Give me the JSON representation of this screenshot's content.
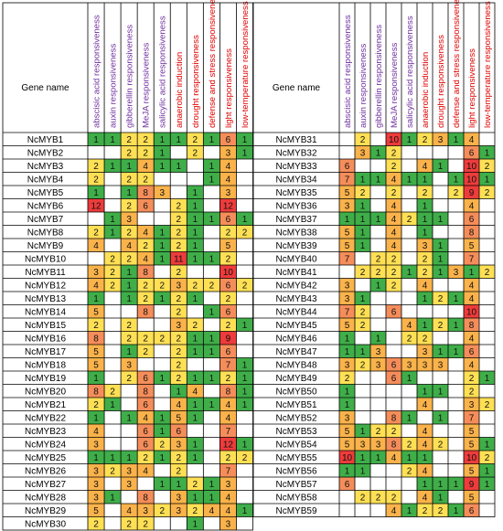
{
  "chart_data": {
    "type": "heatmap",
    "header_gene": "Gene name",
    "columns": [
      {
        "label": "abscisic acid responsiveness",
        "color": "#7030A0"
      },
      {
        "label": "auxin responsiveness",
        "color": "#7030A0"
      },
      {
        "label": "gibberellin responsiveness",
        "color": "#7030A0"
      },
      {
        "label": "MeJA responsiveness",
        "color": "#7030A0"
      },
      {
        "label": "salicylic acid responsiveness",
        "color": "#7030A0"
      },
      {
        "label": "anaerobic induction",
        "color": "#E00000"
      },
      {
        "label": "drought responsiveness",
        "color": "#E00000"
      },
      {
        "label": "defense and stress responsiveness",
        "color": "#E00000"
      },
      {
        "label": "light responsiveness",
        "color": "#E00000"
      },
      {
        "label": "low-temperature responsiveness",
        "color": "#E00000"
      }
    ],
    "left_table": [
      {
        "gene": "NcMYB1",
        "values": [
          1,
          1,
          2,
          2,
          1,
          1,
          2,
          1,
          6,
          1
        ]
      },
      {
        "gene": "NcMYB2",
        "values": [
          null,
          null,
          2,
          2,
          1,
          null,
          2,
          null,
          3,
          1
        ]
      },
      {
        "gene": "NcMYB3",
        "values": [
          2,
          1,
          1,
          4,
          1,
          1,
          null,
          1,
          4,
          null
        ]
      },
      {
        "gene": "NcMYB4",
        "values": [
          2,
          null,
          2,
          2,
          null,
          null,
          null,
          1,
          4,
          null
        ]
      },
      {
        "gene": "NcMYB5",
        "values": [
          1,
          null,
          1,
          8,
          3,
          null,
          1,
          null,
          3,
          null
        ]
      },
      {
        "gene": "NcMYB6",
        "values": [
          12,
          null,
          2,
          6,
          null,
          2,
          1,
          null,
          12,
          null
        ]
      },
      {
        "gene": "NcMYB7",
        "values": [
          null,
          1,
          3,
          null,
          null,
          2,
          1,
          1,
          6,
          1
        ]
      },
      {
        "gene": "NcMYB8",
        "values": [
          2,
          1,
          2,
          4,
          1,
          2,
          1,
          null,
          2,
          2
        ]
      },
      {
        "gene": "NcMYB9",
        "values": [
          4,
          null,
          4,
          2,
          1,
          2,
          1,
          null,
          5,
          null
        ]
      },
      {
        "gene": "NcMYB10",
        "values": [
          null,
          2,
          2,
          4,
          1,
          11,
          1,
          1,
          2,
          null
        ]
      },
      {
        "gene": "NcMYB11",
        "values": [
          3,
          2,
          1,
          8,
          null,
          2,
          null,
          null,
          10,
          null
        ]
      },
      {
        "gene": "NcMYB12",
        "values": [
          4,
          2,
          1,
          2,
          2,
          3,
          2,
          2,
          6,
          2
        ]
      },
      {
        "gene": "NcMYB13",
        "values": [
          1,
          null,
          1,
          2,
          1,
          2,
          1,
          null,
          2,
          null
        ]
      },
      {
        "gene": "NcMYB14",
        "values": [
          5,
          null,
          null,
          8,
          null,
          2,
          null,
          1,
          6,
          null
        ]
      },
      {
        "gene": "NcMYB15",
        "values": [
          2,
          null,
          2,
          null,
          null,
          3,
          2,
          null,
          2,
          1
        ]
      },
      {
        "gene": "NcMYB16",
        "values": [
          8,
          null,
          2,
          2,
          2,
          2,
          1,
          1,
          9,
          null
        ]
      },
      {
        "gene": "NcMYB17",
        "values": [
          5,
          null,
          1,
          2,
          null,
          2,
          1,
          1,
          6,
          null
        ]
      },
      {
        "gene": "NcMYB18",
        "values": [
          5,
          null,
          3,
          null,
          null,
          2,
          null,
          null,
          7,
          1
        ]
      },
      {
        "gene": "NcMYB19",
        "values": [
          1,
          null,
          2,
          6,
          1,
          2,
          1,
          1,
          2,
          1
        ]
      },
      {
        "gene": "NcMYB20",
        "values": [
          8,
          2,
          null,
          8,
          null,
          1,
          4,
          null,
          8,
          1
        ]
      },
      {
        "gene": "NcMYB21",
        "values": [
          2,
          1,
          null,
          6,
          null,
          4,
          1,
          1,
          4,
          1
        ]
      },
      {
        "gene": "NcMYB22",
        "values": [
          1,
          null,
          1,
          4,
          1,
          5,
          1,
          null,
          4,
          null
        ]
      },
      {
        "gene": "NcMYB23",
        "values": [
          4,
          null,
          null,
          6,
          1,
          6,
          null,
          null,
          7,
          null
        ]
      },
      {
        "gene": "NcMYB24",
        "values": [
          3,
          null,
          null,
          6,
          2,
          3,
          1,
          null,
          12,
          1
        ]
      },
      {
        "gene": "NcMYB25",
        "values": [
          1,
          1,
          1,
          2,
          1,
          2,
          1,
          null,
          2,
          2
        ]
      },
      {
        "gene": "NcMYB26",
        "values": [
          3,
          2,
          3,
          4,
          null,
          2,
          null,
          null,
          7,
          null
        ]
      },
      {
        "gene": "NcMYB27",
        "values": [
          3,
          null,
          3,
          null,
          1,
          1,
          2,
          1,
          3,
          null
        ]
      },
      {
        "gene": "NcMYB28",
        "values": [
          3,
          1,
          null,
          8,
          null,
          3,
          1,
          1,
          4,
          null
        ]
      },
      {
        "gene": "NcMYB29",
        "values": [
          5,
          null,
          4,
          3,
          2,
          3,
          2,
          4,
          4,
          1
        ]
      },
      {
        "gene": "NcMYB30",
        "values": [
          2,
          null,
          2,
          2,
          null,
          null,
          1,
          null,
          3,
          null
        ]
      }
    ],
    "right_table": [
      {
        "gene": "NcMYB31",
        "values": [
          null,
          2,
          null,
          10,
          1,
          2,
          3,
          1,
          4,
          null
        ]
      },
      {
        "gene": "NcMYB32",
        "values": [
          null,
          3,
          1,
          2,
          null,
          null,
          null,
          null,
          6,
          1
        ]
      },
      {
        "gene": "NcMYB33",
        "values": [
          6,
          null,
          null,
          2,
          null,
          4,
          1,
          null,
          10,
          2
        ]
      },
      {
        "gene": "NcMYB34",
        "values": [
          7,
          1,
          1,
          4,
          1,
          1,
          null,
          1,
          10,
          1
        ]
      },
      {
        "gene": "NcMYB35",
        "values": [
          5,
          2,
          null,
          2,
          null,
          2,
          null,
          2,
          9,
          2
        ]
      },
      {
        "gene": "NcMYB36",
        "values": [
          3,
          1,
          null,
          4,
          null,
          1,
          null,
          null,
          4,
          null
        ]
      },
      {
        "gene": "NcMYB37",
        "values": [
          1,
          1,
          1,
          4,
          2,
          1,
          1,
          null,
          6,
          null
        ]
      },
      {
        "gene": "NcMYB38",
        "values": [
          5,
          1,
          null,
          4,
          null,
          1,
          null,
          null,
          8,
          null
        ]
      },
      {
        "gene": "NcMYB39",
        "values": [
          5,
          1,
          null,
          4,
          null,
          3,
          1,
          null,
          5,
          null
        ]
      },
      {
        "gene": "NcMYB40",
        "values": [
          7,
          null,
          2,
          2,
          null,
          2,
          1,
          null,
          7,
          null
        ]
      },
      {
        "gene": "NcMYB41",
        "values": [
          null,
          2,
          2,
          2,
          1,
          2,
          1,
          3,
          1,
          2
        ]
      },
      {
        "gene": "NcMYB42",
        "values": [
          3,
          null,
          1,
          2,
          null,
          4,
          null,
          null,
          4,
          null
        ]
      },
      {
        "gene": "NcMYB43",
        "values": [
          3,
          1,
          null,
          null,
          null,
          1,
          2,
          1,
          4,
          null
        ]
      },
      {
        "gene": "NcMYB44",
        "values": [
          7,
          2,
          null,
          6,
          null,
          null,
          null,
          null,
          10,
          null
        ]
      },
      {
        "gene": "NcMYB45",
        "values": [
          5,
          2,
          null,
          null,
          4,
          1,
          2,
          1,
          8,
          null
        ]
      },
      {
        "gene": "NcMYB46",
        "values": [
          1,
          null,
          1,
          null,
          2,
          2,
          null,
          null,
          4,
          null
        ]
      },
      {
        "gene": "NcMYB47",
        "values": [
          1,
          1,
          3,
          null,
          null,
          3,
          1,
          1,
          6,
          null
        ]
      },
      {
        "gene": "NcMYB48",
        "values": [
          3,
          2,
          3,
          6,
          3,
          3,
          3,
          null,
          4,
          null
        ]
      },
      {
        "gene": "NcMYB49",
        "values": [
          2,
          null,
          null,
          6,
          1,
          null,
          null,
          null,
          2,
          1
        ]
      },
      {
        "gene": "NcMYB50",
        "values": [
          1,
          null,
          null,
          null,
          null,
          1,
          1,
          null,
          2,
          null
        ]
      },
      {
        "gene": "NcMYB51",
        "values": [
          1,
          null,
          null,
          null,
          null,
          4,
          null,
          null,
          3,
          2
        ]
      },
      {
        "gene": "NcMYB52",
        "values": [
          3,
          null,
          null,
          8,
          1,
          null,
          1,
          null,
          7,
          null
        ]
      },
      {
        "gene": "NcMYB53",
        "values": [
          5,
          1,
          2,
          2,
          null,
          4,
          null,
          null,
          5,
          null
        ]
      },
      {
        "gene": "NcMYB54",
        "values": [
          5,
          3,
          3,
          8,
          2,
          4,
          2,
          null,
          5,
          1
        ]
      },
      {
        "gene": "NcMYB55",
        "values": [
          10,
          1,
          1,
          4,
          1,
          1,
          null,
          null,
          10,
          2
        ]
      },
      {
        "gene": "NcMYB56",
        "values": [
          1,
          1,
          null,
          null,
          2,
          4,
          null,
          null,
          5,
          1
        ]
      },
      {
        "gene": "NcMYB57",
        "values": [
          6,
          null,
          null,
          null,
          null,
          1,
          1,
          1,
          9,
          1
        ]
      },
      {
        "gene": "NcMYB58",
        "values": [
          null,
          2,
          2,
          2,
          null,
          4,
          1,
          null,
          5,
          null
        ]
      },
      {
        "gene": "NcMYB59",
        "values": [
          null,
          null,
          null,
          4,
          1,
          2,
          2,
          1,
          6,
          null
        ]
      }
    ],
    "color_scale": [
      {
        "max": 1,
        "color": "#3FAE49"
      },
      {
        "max": 2,
        "color": "#FFE055"
      },
      {
        "max": 5,
        "color": "#FAB24A"
      },
      {
        "max": 8,
        "color": "#F58D5A"
      },
      {
        "max": 99,
        "color": "#EE3B3B"
      }
    ]
  }
}
